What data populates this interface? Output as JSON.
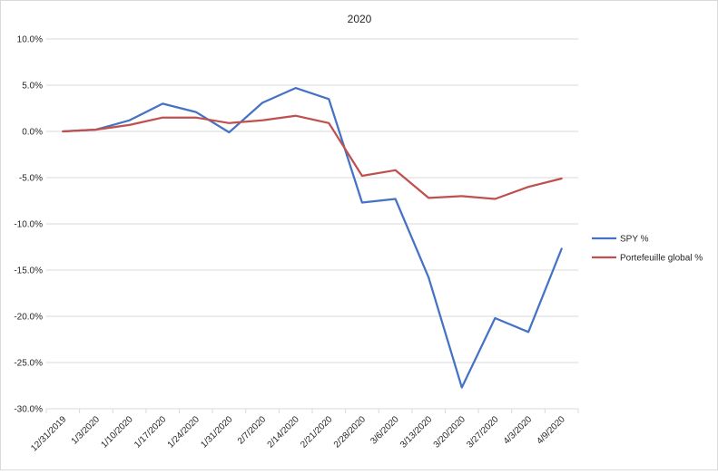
{
  "chart_data": {
    "type": "line",
    "title": "2020",
    "categories": [
      "12/31/2019",
      "1/3/2020",
      "1/10/2020",
      "1/17/2020",
      "1/24/2020",
      "1/31/2020",
      "2/7/2020",
      "2/14/2020",
      "2/21/2020",
      "2/28/2020",
      "3/6/2020",
      "3/13/2020",
      "3/20/2020",
      "3/27/2020",
      "4/3/2020",
      "4/9/2020"
    ],
    "y_ticks": [
      "10.0%",
      "5.0%",
      "0.0%",
      "-5.0%",
      "-10.0%",
      "-15.0%",
      "-20.0%",
      "-25.0%",
      "-30.0%"
    ],
    "ylim": [
      -30,
      10
    ],
    "grid": true,
    "legend_position": "right",
    "series": [
      {
        "name": "SPY %",
        "color": "#4472c4",
        "values": [
          0.0,
          0.2,
          1.2,
          3.0,
          2.1,
          -0.1,
          3.1,
          4.7,
          3.5,
          -7.7,
          -7.3,
          -15.8,
          -27.7,
          -20.2,
          -21.7,
          -12.7
        ]
      },
      {
        "name": "Portefeuille global %",
        "color": "#c0504d",
        "values": [
          0.0,
          0.2,
          0.7,
          1.5,
          1.5,
          0.9,
          1.2,
          1.7,
          0.9,
          -4.8,
          -4.2,
          -7.2,
          -7.0,
          -7.3,
          -6.0,
          -5.1
        ]
      }
    ]
  }
}
